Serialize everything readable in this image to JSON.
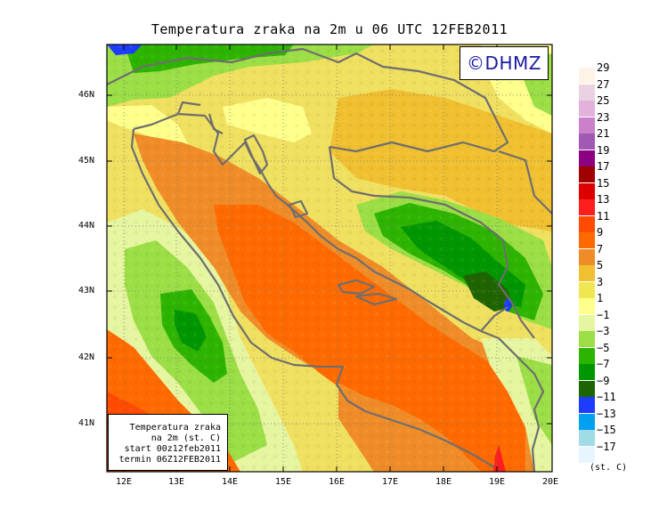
{
  "title": "Temperatura zraka na 2m u 06 UTC 12FEB2011",
  "logo": "©DHMZ",
  "info_box": {
    "line1": "Temperatura zraka",
    "line2": "na 2m (st. C)",
    "line3": "start 00z12feb2011",
    "line4": "termin 06Z12FEB2011"
  },
  "lat_labels": [
    "46N",
    "45N",
    "44N",
    "43N",
    "42N",
    "41N"
  ],
  "lon_labels": [
    "12E",
    "13E",
    "14E",
    "15E",
    "16E",
    "17E",
    "18E",
    "19E",
    "20E"
  ],
  "legend": {
    "unit": "(st. C)",
    "labels": [
      "29",
      "27",
      "25",
      "23",
      "21",
      "19",
      "17",
      "15",
      "13",
      "11",
      "9",
      "7",
      "5",
      "3",
      "1",
      "−1",
      "−3",
      "−5",
      "−7",
      "−9",
      "−11",
      "−13",
      "−15",
      "−17"
    ],
    "colors": [
      "#fff2e6",
      "#ead2e2",
      "#e2b2da",
      "#cc80cc",
      "#a05ab4",
      "#8c0082",
      "#a00000",
      "#dc0000",
      "#ff1e1e",
      "#ff4a00",
      "#ff6a00",
      "#f08c28",
      "#f0c030",
      "#f0e650",
      "#ffff8c",
      "#e6f5a0",
      "#9bde46",
      "#2db400",
      "#009600",
      "#1e6400",
      "#1e3cff",
      "#00a0f0",
      "#a0dce6",
      "#e6f5ff"
    ]
  }
}
